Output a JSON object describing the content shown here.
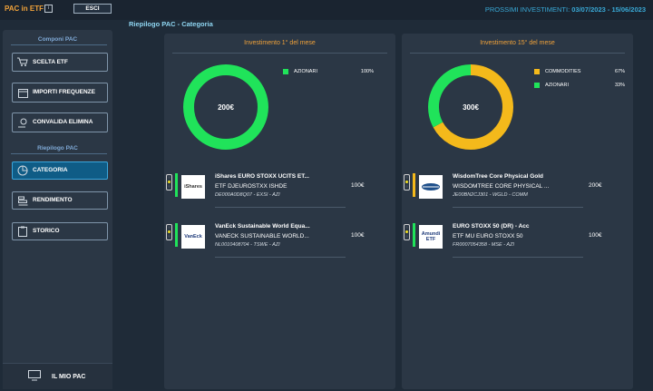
{
  "header": {
    "brand": "PAC in ETF",
    "info_icon": "info-icon",
    "exit_label": "ESCI",
    "next_label": "PROSSIMI INVESTIMENTI:",
    "next_dates": "03/07/2023 - 15/06/2023"
  },
  "page_title": "Riepilogo PAC - Categoria",
  "sidebar": {
    "section1": "Componi PAC",
    "section2": "Riepilogo PAC",
    "items": [
      {
        "label": "SCELTA ETF",
        "icon": "cart-icon"
      },
      {
        "label": "IMPORTI FREQUENZE",
        "icon": "calendar-icon"
      },
      {
        "label": "CONVALIDA ELIMINA",
        "icon": "coin-hand-icon"
      },
      {
        "label": "CATEGORIA",
        "icon": "pie-icon"
      },
      {
        "label": "RENDIMENTO",
        "icon": "bar-chart-icon"
      },
      {
        "label": "STORICO",
        "icon": "clipboard-icon"
      }
    ],
    "footer": {
      "label": "IL MIO PAC",
      "icon": "monitor-icon"
    }
  },
  "colors": {
    "accent_orange": "#f0a23a",
    "green": "#20e35a",
    "yellow": "#f4b91b",
    "active_blue": "#0f5c86"
  },
  "panels": [
    {
      "title": "Investimento 1° del mese",
      "total": "200€",
      "legend": [
        {
          "name": "AZIONARI",
          "pct": "100%",
          "color": "#20e35a",
          "fraction": 1.0
        }
      ],
      "etfs": [
        {
          "logo": "iShares",
          "name": "iShares EURO STOXX UCITS ET...",
          "sub": "ETF DJEUROSTXX ISHDE",
          "code": "DE000A0D8Q07 - EXSI - AZI",
          "amount": "100€",
          "bar_color": "#20e35a",
          "light": "yellow"
        },
        {
          "logo": "VanEck",
          "name": "VanEck Sustainable World Equa...",
          "sub": "VANECK SUSTAINABLE WORLD...",
          "code": "NL0010408704 - TSWE - AZI",
          "amount": "100€",
          "bar_color": "#20e35a",
          "light": "yellow"
        }
      ]
    },
    {
      "title": "Investimento 15° del mese",
      "total": "300€",
      "legend": [
        {
          "name": "COMMODITIES",
          "pct": "67%",
          "color": "#f4b91b",
          "fraction": 0.67
        },
        {
          "name": "AZIONARI",
          "pct": "33%",
          "color": "#20e35a",
          "fraction": 0.33
        }
      ],
      "etfs": [
        {
          "logo": "",
          "name": "WisdomTree Core Physical Gold",
          "sub": "WISDOMTREE CORE PHYSICAL ...",
          "code": "JE00BN2CJ301 - WGLD - COMM",
          "amount": "200€",
          "bar_color": "#f4b91b",
          "light": "yellow"
        },
        {
          "logo": "Amundi ETF",
          "name": "EURO STOXX 50 (DR) - Acc",
          "sub": "ETF MU EURO STOXX 50",
          "code": "FR0007054358 - MSE - AZI",
          "amount": "100€",
          "bar_color": "#20e35a",
          "light": "yellow"
        }
      ]
    }
  ]
}
